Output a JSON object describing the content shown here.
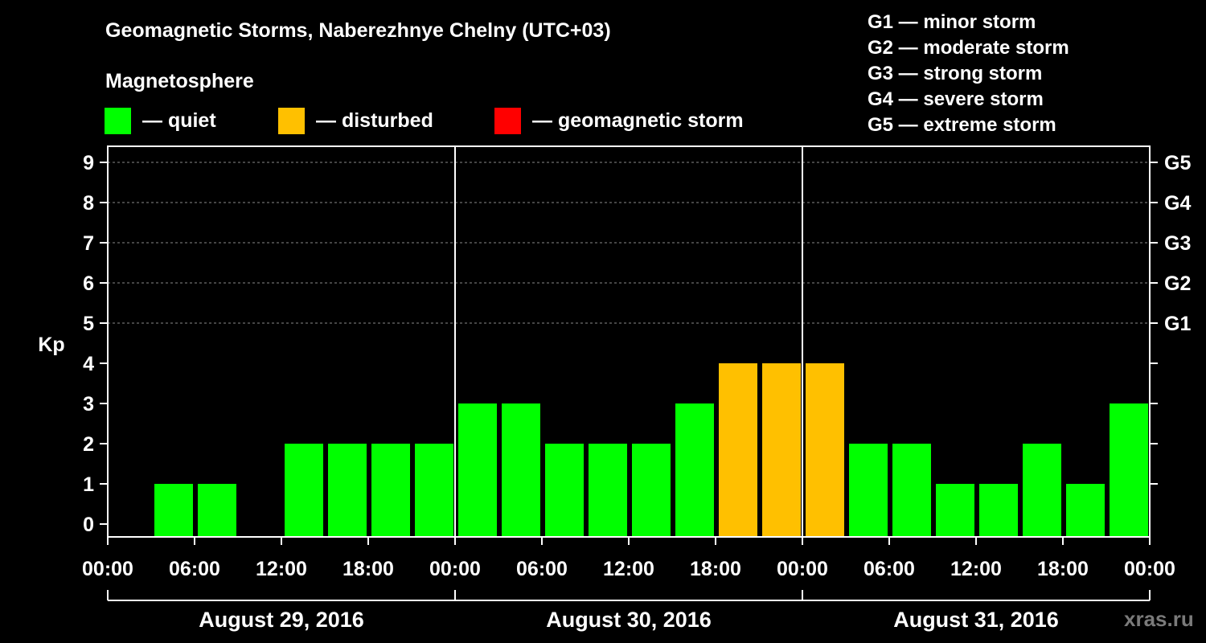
{
  "header": {
    "title": "Geomagnetic Storms, Naberezhnye Chelny (UTC+03)",
    "magnetosphere": "Magnetosphere"
  },
  "legend": [
    {
      "label": "— quiet",
      "color": "#00ff00"
    },
    {
      "label": "— disturbed",
      "color": "#ffc000"
    },
    {
      "label": "— geomagnetic storm",
      "color": "#ff0000"
    }
  ],
  "storm_scale": [
    "G1 — minor storm",
    "G2 — moderate storm",
    "G3 — strong storm",
    "G4 — severe storm",
    "G5 — extreme storm"
  ],
  "watermark": "xras.ru",
  "chart_data": {
    "type": "bar",
    "title": "Geomagnetic Storms, Naberezhnye Chelny (UTC+03)",
    "ylabel": "Kp",
    "ylim": [
      0,
      9
    ],
    "yticks": [
      "0",
      "1",
      "2",
      "3",
      "4",
      "5",
      "6",
      "7",
      "8",
      "9"
    ],
    "right_ticks": [
      {
        "kp": 5,
        "label": "G1"
      },
      {
        "kp": 6,
        "label": "G2"
      },
      {
        "kp": 7,
        "label": "G3"
      },
      {
        "kp": 8,
        "label": "G4"
      },
      {
        "kp": 9,
        "label": "G5"
      }
    ],
    "xtick_labels": [
      "00:00",
      "06:00",
      "12:00",
      "18:00",
      "00:00",
      "06:00",
      "12:00",
      "18:00",
      "00:00",
      "06:00",
      "12:00",
      "18:00",
      "00:00"
    ],
    "days": [
      "August 29, 2016",
      "August 30, 2016",
      "August 31, 2016"
    ],
    "interval_hours": 3,
    "values": [
      0,
      1,
      1,
      0,
      2,
      2,
      2,
      2,
      3,
      3,
      2,
      2,
      2,
      3,
      4,
      4,
      4,
      2,
      2,
      1,
      1,
      2,
      1,
      3
    ],
    "colors": {
      "quiet": "#00ff00",
      "disturbed": "#ffc000",
      "storm": "#ff0000"
    },
    "thresholds": {
      "disturbed": 4,
      "storm": 5
    },
    "grid": true
  }
}
